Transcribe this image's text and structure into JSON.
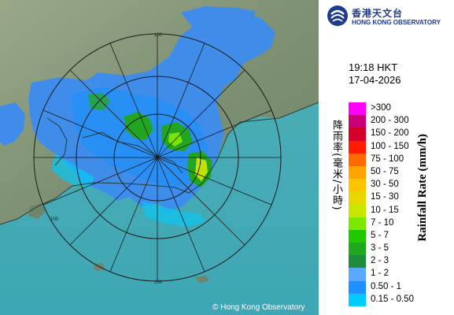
{
  "logo": {
    "name_cn": "香港天文台",
    "name_en": "HONG KONG OBSERVATORY",
    "icon": "hko-logo-icon"
  },
  "timestamp": {
    "time": "19:18 HKT",
    "date": "17-04-2026"
  },
  "legend": {
    "title_cn": "降雨率(毫米/小時)",
    "title_en": "Rainfall Rate (mm/h)",
    "items": [
      {
        "label": ">300",
        "color": "#ff00ff"
      },
      {
        "label": "200 - 300",
        "color": "#c8007a"
      },
      {
        "label": "150 - 200",
        "color": "#d4002a"
      },
      {
        "label": "100 - 150",
        "color": "#ff1a00"
      },
      {
        "label": "75 - 100",
        "color": "#ff6a00"
      },
      {
        "label": "50 - 75",
        "color": "#ffa500"
      },
      {
        "label": "30 - 50",
        "color": "#ffc400"
      },
      {
        "label": "15 - 30",
        "color": "#e8d600"
      },
      {
        "label": "10 - 15",
        "color": "#c8e600"
      },
      {
        "label": "7 - 10",
        "color": "#7ce800"
      },
      {
        "label": "5 - 7",
        "color": "#20c800"
      },
      {
        "label": "3 - 5",
        "color": "#1ea81e"
      },
      {
        "label": "2 - 3",
        "color": "#1e8a3c"
      },
      {
        "label": "1 - 2",
        "color": "#5aa8ff"
      },
      {
        "label": "0.50 - 1",
        "color": "#1e90ff"
      },
      {
        "label": "0.15 - 0.50",
        "color": "#00ccff"
      }
    ]
  },
  "map": {
    "range_rings": [
      "100",
      "100",
      "100"
    ],
    "copyright": "© Hong Kong Observatory"
  }
}
